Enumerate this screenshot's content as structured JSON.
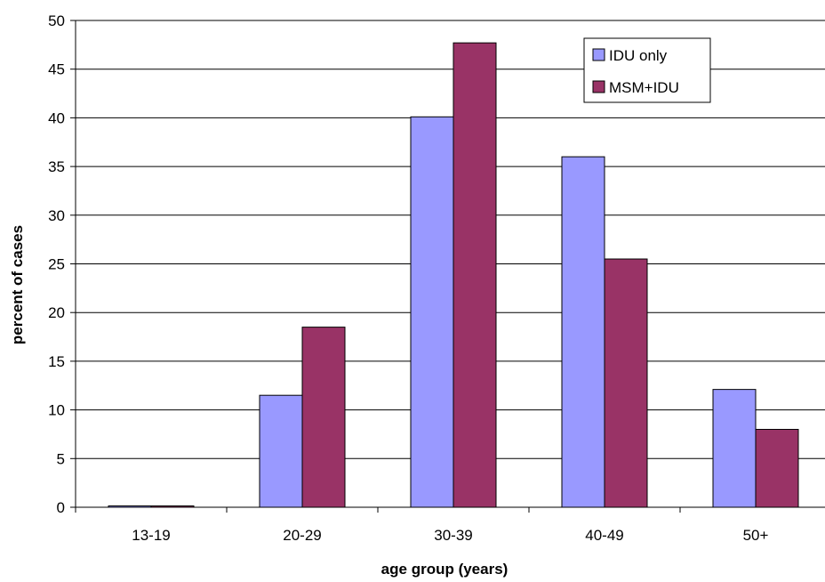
{
  "chart_data": {
    "type": "bar",
    "title": "",
    "xlabel": "age group (years)",
    "ylabel": "percent of cases",
    "categories": [
      "13-19",
      "20-29",
      "30-39",
      "40-49",
      "50+"
    ],
    "ylim": [
      0,
      50
    ],
    "yticks": [
      0,
      5,
      10,
      15,
      20,
      25,
      30,
      35,
      40,
      45,
      50
    ],
    "grid": true,
    "legend_position": "top-right",
    "series": [
      {
        "name": "IDU only",
        "color": "#9999ff",
        "values": [
          0.1,
          11.5,
          40.1,
          36.0,
          12.1
        ]
      },
      {
        "name": "MSM+IDU",
        "color": "#993366",
        "values": [
          0.1,
          18.5,
          47.7,
          25.5,
          8.0
        ]
      }
    ]
  }
}
